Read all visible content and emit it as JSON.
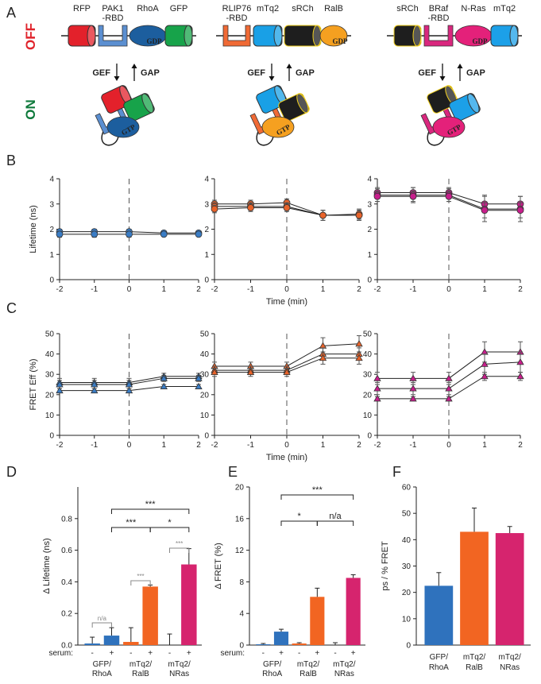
{
  "panel_labels": [
    "A",
    "B",
    "C",
    "D",
    "E",
    "F"
  ],
  "diagram": {
    "state_labels": {
      "off": "OFF",
      "on": "ON"
    },
    "constructs": [
      {
        "domains": [
          [
            "RFP"
          ],
          [
            "PAK1",
            "-RBD"
          ],
          [
            "RhoA"
          ],
          [
            "GFP"
          ]
        ],
        "gdp": "GDP",
        "gef": "GEF",
        "gap": "GAP",
        "gtp": "GTP"
      },
      {
        "domains": [
          [
            "RLIP76",
            "-RBD"
          ],
          [
            "mTq2"
          ],
          [
            "sRCh"
          ],
          [
            "RalB"
          ]
        ],
        "gdp": "GDP",
        "gef": "GEF",
        "gap": "GAP",
        "gtp": "GTP"
      },
      {
        "domains": [
          [
            "sRCh"
          ],
          [
            "BRaf",
            "-RBD"
          ],
          [
            "N-Ras"
          ],
          [
            "mTq2"
          ]
        ],
        "gdp": "GDP",
        "gef": "GEF",
        "gap": "GAP",
        "gtp": "GTP"
      }
    ]
  },
  "chart_data": [
    {
      "type": "line",
      "ylabel": "Lifetime (ns)",
      "x": [
        -2,
        -1,
        0,
        1,
        2
      ],
      "xlim": [
        -2,
        2
      ],
      "xticks": [
        -2,
        -1,
        0,
        1,
        2
      ],
      "ylim": [
        0,
        4
      ],
      "yticks": [
        0,
        1,
        2,
        3,
        4
      ],
      "reference_x": 0,
      "marker": "circle",
      "series": [
        {
          "color": "#3a7cc4",
          "values": [
            1.9,
            1.9,
            1.9,
            1.85,
            1.85
          ],
          "errors": [
            0.1,
            0.1,
            0.1,
            0.08,
            0.08
          ]
        },
        {
          "color": "#3a7cc4",
          "values": [
            1.8,
            1.8,
            1.8,
            1.8,
            1.8
          ],
          "errors": [
            0.12,
            0.12,
            0.12,
            0.08,
            0.08
          ]
        }
      ]
    },
    {
      "type": "line",
      "xlabel": "Time (min)",
      "x": [
        -2,
        -1,
        0,
        1,
        2
      ],
      "xlim": [
        -2,
        2
      ],
      "xticks": [
        -2,
        -1,
        0,
        1,
        2
      ],
      "ylim": [
        0,
        4
      ],
      "yticks": [
        0,
        1,
        2,
        3,
        4
      ],
      "reference_x": 0,
      "marker": "circle",
      "series": [
        {
          "color": "#e8632a",
          "values": [
            3.0,
            3.0,
            3.05,
            2.55,
            2.55
          ],
          "errors": [
            0.15,
            0.15,
            0.15,
            0.2,
            0.2
          ]
        },
        {
          "color": "#e8632a",
          "values": [
            2.9,
            2.9,
            2.9,
            2.55,
            2.6
          ],
          "errors": [
            0.15,
            0.15,
            0.15,
            0.2,
            0.2
          ]
        },
        {
          "color": "#e8632a",
          "values": [
            2.8,
            2.85,
            2.85,
            2.55,
            2.55
          ],
          "errors": [
            0.15,
            0.15,
            0.15,
            0.2,
            0.2
          ]
        }
      ]
    },
    {
      "type": "line",
      "x": [
        -2,
        -1,
        0,
        1,
        2
      ],
      "xlim": [
        -2,
        2
      ],
      "xticks": [
        -2,
        -1,
        0,
        1,
        2
      ],
      "ylim": [
        0,
        4
      ],
      "yticks": [
        0,
        1,
        2,
        3,
        4
      ],
      "reference_x": 0,
      "marker": "circle",
      "series": [
        {
          "color": "#c81e8c",
          "values": [
            3.45,
            3.45,
            3.45,
            3.0,
            3.0
          ],
          "errors": [
            0.2,
            0.2,
            0.2,
            0.35,
            0.3
          ]
        },
        {
          "color": "#c81e8c",
          "values": [
            3.35,
            3.35,
            3.35,
            2.8,
            2.8
          ],
          "errors": [
            0.25,
            0.3,
            0.25,
            0.5,
            0.5
          ]
        },
        {
          "color": "#c81e8c",
          "values": [
            3.3,
            3.3,
            3.3,
            2.75,
            2.75
          ],
          "errors": [
            0.2,
            0.2,
            0.2,
            0.3,
            0.3
          ]
        }
      ]
    },
    {
      "type": "line",
      "ylabel": "FRET Eff (%)",
      "x": [
        -2,
        -1,
        0,
        1,
        2
      ],
      "xlim": [
        -2,
        2
      ],
      "xticks": [
        -2,
        -1,
        0,
        1,
        2
      ],
      "ylim": [
        0,
        50
      ],
      "yticks": [
        0,
        10,
        20,
        30,
        40,
        50
      ],
      "reference_x": 0,
      "marker": "triangle",
      "series": [
        {
          "color": "#3a7cc4",
          "values": [
            26,
            26,
            26,
            29,
            29
          ],
          "errors": [
            2,
            2,
            2,
            1.5,
            1.5
          ]
        },
        {
          "color": "#3a7cc4",
          "values": [
            25,
            25,
            25,
            28,
            28
          ],
          "errors": [
            2,
            2,
            2,
            1.5,
            1.5
          ]
        },
        {
          "color": "#3a7cc4",
          "values": [
            22,
            22,
            22,
            24,
            24
          ],
          "errors": [
            1,
            1,
            1,
            1,
            1
          ]
        }
      ]
    },
    {
      "type": "line",
      "xlabel": "Time (min)",
      "x": [
        -2,
        -1,
        0,
        1,
        2
      ],
      "xlim": [
        -2,
        2
      ],
      "xticks": [
        -2,
        -1,
        0,
        1,
        2
      ],
      "ylim": [
        0,
        50
      ],
      "yticks": [
        0,
        10,
        20,
        30,
        40,
        50
      ],
      "reference_x": 0,
      "marker": "triangle",
      "series": [
        {
          "color": "#e8632a",
          "values": [
            34,
            34,
            34,
            44,
            45
          ],
          "errors": [
            2,
            2,
            2,
            4,
            4
          ]
        },
        {
          "color": "#e8632a",
          "values": [
            32,
            32,
            32,
            40,
            40
          ],
          "errors": [
            2,
            2,
            2,
            3,
            3
          ]
        },
        {
          "color": "#e8632a",
          "values": [
            31,
            31,
            31,
            38,
            38
          ],
          "errors": [
            2,
            2,
            2,
            3,
            3
          ]
        }
      ]
    },
    {
      "type": "line",
      "x": [
        -2,
        -1,
        0,
        1,
        2
      ],
      "xlim": [
        -2,
        2
      ],
      "xticks": [
        -2,
        -1,
        0,
        1,
        2
      ],
      "ylim": [
        0,
        50
      ],
      "yticks": [
        0,
        10,
        20,
        30,
        40,
        50
      ],
      "reference_x": 0,
      "marker": "triangle",
      "series": [
        {
          "color": "#c81e8c",
          "values": [
            28,
            28,
            28,
            41,
            41
          ],
          "errors": [
            3,
            3,
            3,
            5,
            5
          ]
        },
        {
          "color": "#c81e8c",
          "values": [
            23,
            23,
            23,
            35,
            36
          ],
          "errors": [
            3,
            3,
            3,
            5,
            5
          ]
        },
        {
          "color": "#c81e8c",
          "values": [
            18,
            18,
            18,
            29,
            29
          ],
          "errors": [
            1,
            1,
            1,
            2,
            2
          ]
        }
      ]
    },
    {
      "type": "bar",
      "ylabel": "Δ Lifetime (ns)",
      "ylim": [
        0,
        1
      ],
      "yticks": [
        {
          "value": 0,
          "label": "0.0"
        },
        0.2,
        0.4,
        0.6,
        0.8
      ],
      "category_prefix": "serum:",
      "categories": [
        "-",
        "+",
        "-",
        "+",
        "-",
        "+"
      ],
      "groups": [
        [
          "GFP/",
          "RhoA"
        ],
        [
          "mTq2/",
          "RalB"
        ],
        [
          "mTq2/",
          "NRas"
        ]
      ],
      "colors": [
        "#2f72bd",
        "#2f72bd",
        "#f26522",
        "#f26522",
        "#d6246e",
        "#d6246e"
      ],
      "values": [
        0.01,
        0.06,
        0.02,
        0.37,
        0.0,
        0.51
      ],
      "errors": [
        0.04,
        0.05,
        0.09,
        0.01,
        0.07,
        0.1
      ],
      "annotations": [
        "n/a",
        "***",
        "***",
        "***",
        "***",
        "*"
      ]
    },
    {
      "type": "bar",
      "ylabel": "Δ FRET (%)",
      "ylim": [
        0,
        20
      ],
      "yticks": [
        0,
        4,
        8,
        12,
        16,
        20
      ],
      "category_prefix": "serum:",
      "categories": [
        "-",
        "+",
        "-",
        "+",
        "-",
        "+"
      ],
      "groups": [
        [
          "GFP/",
          "RhoA"
        ],
        [
          "mTq2/",
          "RalB"
        ],
        [
          "mTq2/",
          "NRas"
        ]
      ],
      "colors": [
        "#2f72bd",
        "#2f72bd",
        "#f26522",
        "#f26522",
        "#d6246e",
        "#d6246e"
      ],
      "values": [
        0.1,
        1.7,
        0.2,
        6.1,
        0.0,
        8.5
      ],
      "errors": [
        0.1,
        0.3,
        0.1,
        1.1,
        0.3,
        0.4
      ],
      "annotations": [
        "***",
        "*",
        "n/a"
      ]
    },
    {
      "type": "bar",
      "ylabel": "ps / % FRET",
      "ylim": [
        0,
        60
      ],
      "yticks": [
        0,
        10,
        20,
        30,
        40,
        50,
        60
      ],
      "categories": [
        [
          "GFP/",
          "RhoA"
        ],
        [
          "mTq2/",
          "RalB"
        ],
        [
          "mTq2/",
          "NRas"
        ]
      ],
      "colors": [
        "#2f72bd",
        "#f26522",
        "#d6246e"
      ],
      "values": [
        22.5,
        43,
        42.5
      ],
      "errors": [
        5,
        9,
        2.5
      ]
    }
  ]
}
